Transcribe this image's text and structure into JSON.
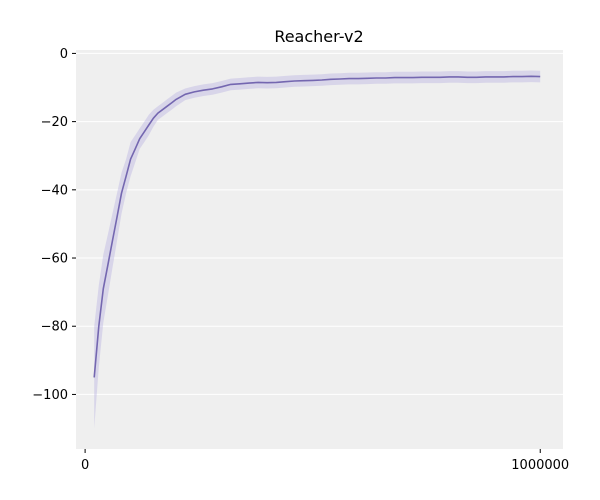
{
  "chart_data": {
    "type": "line",
    "title": "Reacher-v2",
    "xlabel": "",
    "ylabel": "",
    "xlim": [
      -20000,
      1050000
    ],
    "ylim": [
      -116,
      1
    ],
    "x_ticks": [
      0,
      1000000
    ],
    "x_tick_labels": [
      "0",
      "1000000"
    ],
    "y_ticks": [
      0,
      -20,
      -40,
      -60,
      -80,
      -100
    ],
    "y_tick_labels": [
      "0",
      "−20",
      "−40",
      "−60",
      "−80",
      "−100"
    ],
    "grid": true,
    "legend": "none",
    "colors": {
      "plot_background": "#efefef",
      "grid": "#ffffff",
      "line": "#7467b0",
      "band": "#bdb6e3"
    },
    "series": [
      {
        "x": [
          20000,
          30000,
          40000,
          50000,
          60000,
          70000,
          80000,
          90000,
          100000,
          110000,
          120000,
          130000,
          140000,
          150000,
          160000,
          170000,
          180000,
          190000,
          200000,
          220000,
          240000,
          260000,
          280000,
          300000,
          320000,
          340000,
          360000,
          380000,
          400000,
          420000,
          440000,
          460000,
          480000,
          500000,
          520000,
          540000,
          560000,
          580000,
          600000,
          620000,
          640000,
          660000,
          680000,
          700000,
          720000,
          740000,
          760000,
          780000,
          800000,
          820000,
          840000,
          860000,
          880000,
          900000,
          920000,
          940000,
          960000,
          980000,
          1000000
        ],
        "y": [
          -95,
          -80,
          -69,
          -62,
          -55,
          -48,
          -41,
          -36,
          -31,
          -28,
          -25,
          -23,
          -21,
          -19,
          -17.5,
          -16.5,
          -15.5,
          -14.5,
          -13.5,
          -12,
          -11.3,
          -10.8,
          -10.4,
          -9.8,
          -9.1,
          -8.9,
          -8.7,
          -8.5,
          -8.6,
          -8.5,
          -8.3,
          -8.1,
          -8.0,
          -7.9,
          -7.8,
          -7.6,
          -7.5,
          -7.4,
          -7.4,
          -7.3,
          -7.2,
          -7.2,
          -7.1,
          -7.1,
          -7.1,
          -7.0,
          -7.0,
          -7.0,
          -6.9,
          -6.9,
          -7.0,
          -7.0,
          -6.9,
          -6.9,
          -6.9,
          -6.8,
          -6.8,
          -6.7,
          -6.8
        ],
        "y_lower": [
          -110,
          -92,
          -79,
          -71,
          -63,
          -55,
          -47,
          -41,
          -36,
          -32,
          -28,
          -26,
          -24,
          -21.5,
          -19.5,
          -18.5,
          -17.5,
          -16.5,
          -15.5,
          -13.7,
          -13,
          -12.5,
          -12.1,
          -11.5,
          -10.8,
          -10.6,
          -10.4,
          -10.2,
          -10.3,
          -10.2,
          -10,
          -9.8,
          -9.7,
          -9.6,
          -9.5,
          -9.3,
          -9.2,
          -9.1,
          -9.1,
          -9,
          -8.9,
          -8.9,
          -8.8,
          -8.8,
          -8.8,
          -8.7,
          -8.7,
          -8.7,
          -8.6,
          -8.6,
          -8.7,
          -8.7,
          -8.6,
          -8.6,
          -8.6,
          -8.5,
          -8.5,
          -8.4,
          -8.5
        ],
        "y_upper": [
          -80,
          -68,
          -59,
          -53,
          -47,
          -41,
          -35,
          -31,
          -26,
          -24,
          -22,
          -20,
          -18,
          -16.5,
          -15.5,
          -14.5,
          -13.5,
          -12.5,
          -11.5,
          -10.3,
          -9.6,
          -9.1,
          -8.7,
          -8.1,
          -7.4,
          -7.2,
          -7.0,
          -6.8,
          -6.9,
          -6.8,
          -6.6,
          -6.4,
          -6.3,
          -6.2,
          -6.1,
          -5.9,
          -5.8,
          -5.7,
          -5.7,
          -5.6,
          -5.5,
          -5.5,
          -5.4,
          -5.4,
          -5.4,
          -5.3,
          -5.3,
          -5.3,
          -5.2,
          -5.2,
          -5.3,
          -5.3,
          -5.2,
          -5.2,
          -5.2,
          -5.1,
          -5.1,
          -5.0,
          -5.1
        ]
      }
    ]
  }
}
